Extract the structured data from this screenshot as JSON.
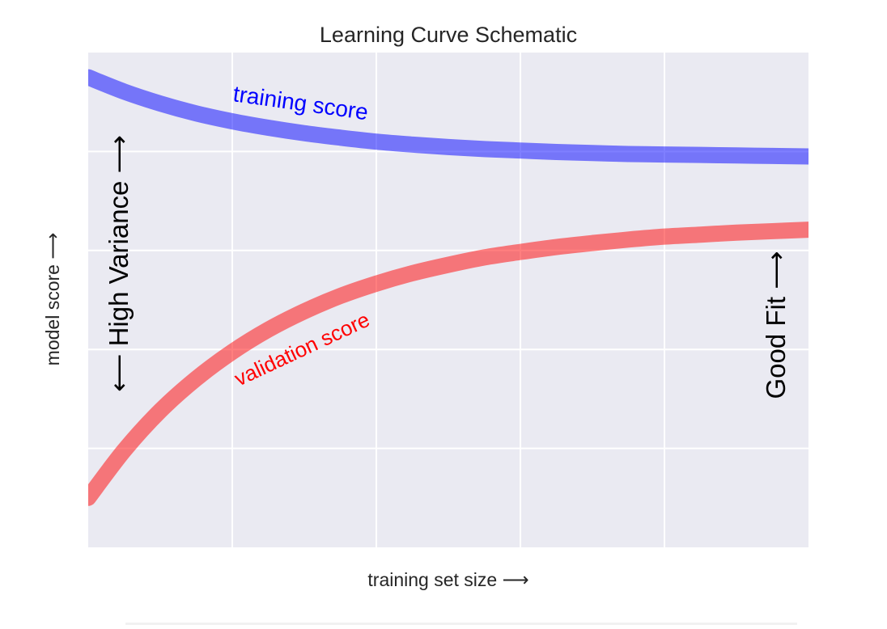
{
  "chart_data": {
    "type": "line",
    "title": "Learning Curve Schematic",
    "xlabel": "training set size  ⟶",
    "ylabel": "model score  ⟶",
    "xlim": [
      1,
      3
    ],
    "ylim": [
      0,
      1
    ],
    "x_ticks": [
      1.4,
      1.8,
      2.2,
      2.6
    ],
    "y_ticks": [
      0.2,
      0.4,
      0.6,
      0.8
    ],
    "grid": true,
    "background_color": "#eaeaf2",
    "grid_color": "#ffffff",
    "series": [
      {
        "label": "training score",
        "color": "#0000ff",
        "alpha": 0.5,
        "x": [
          1.0,
          1.1,
          1.2,
          1.3,
          1.4,
          1.5,
          1.6,
          1.7,
          1.8,
          1.9,
          2.0,
          2.1,
          2.2,
          2.3,
          2.4,
          2.5,
          2.6,
          2.7,
          2.8,
          2.9,
          3.0
        ],
        "y": [
          0.95,
          0.921,
          0.897,
          0.877,
          0.861,
          0.848,
          0.837,
          0.828,
          0.82,
          0.814,
          0.809,
          0.805,
          0.802,
          0.799,
          0.797,
          0.795,
          0.794,
          0.793,
          0.792,
          0.791,
          0.79
        ]
      },
      {
        "label": "validation score",
        "color": "#ff0000",
        "alpha": 0.5,
        "x": [
          1.0,
          1.1,
          1.2,
          1.3,
          1.4,
          1.5,
          1.6,
          1.7,
          1.8,
          1.9,
          2.0,
          2.1,
          2.2,
          2.3,
          2.4,
          2.5,
          2.6,
          2.7,
          2.8,
          2.9,
          3.0
        ],
        "y": [
          0.1,
          0.196,
          0.276,
          0.341,
          0.395,
          0.44,
          0.477,
          0.508,
          0.533,
          0.554,
          0.571,
          0.586,
          0.597,
          0.607,
          0.615,
          0.622,
          0.628,
          0.632,
          0.636,
          0.639,
          0.642
        ]
      }
    ],
    "annotations": [
      {
        "text": "High Variance",
        "arrows": "⟵  ⟶",
        "color": "#000000",
        "rotation": 90,
        "orientation": "vertical"
      },
      {
        "text": "Good Fit",
        "arrows": "⟶",
        "color": "#000000",
        "rotation": 90,
        "orientation": "vertical"
      }
    ]
  }
}
